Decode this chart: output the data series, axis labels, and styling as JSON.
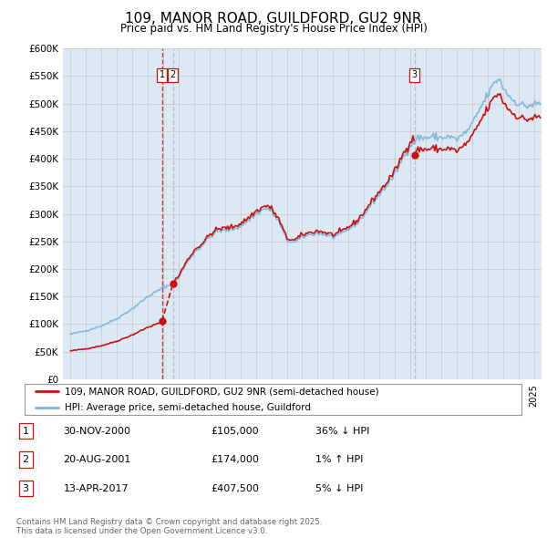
{
  "title": "109, MANOR ROAD, GUILDFORD, GU2 9NR",
  "subtitle": "Price paid vs. HM Land Registry's House Price Index (HPI)",
  "ylim": [
    0,
    600000
  ],
  "yticks": [
    0,
    50000,
    100000,
    150000,
    200000,
    250000,
    300000,
    350000,
    400000,
    450000,
    500000,
    550000,
    600000
  ],
  "xlim_start": 1994.5,
  "xlim_end": 2025.5,
  "hpi_color": "#7ab4d8",
  "price_color": "#cc1111",
  "grid_color": "#cccccc",
  "background_color": "#dce9f5",
  "sale_dates": [
    2000.916,
    2001.635,
    2017.278
  ],
  "sale_prices": [
    105000,
    174000,
    407500
  ],
  "sale_labels": [
    "1",
    "2",
    "3"
  ],
  "vline1_color": "#cc1111",
  "vline2_color": "#aaaacc",
  "vline3_color": "#aaaacc",
  "transaction_table": [
    {
      "label": "1",
      "date": "30-NOV-2000",
      "price": "£105,000",
      "hpi": "36% ↓ HPI"
    },
    {
      "label": "2",
      "date": "20-AUG-2001",
      "price": "£174,000",
      "hpi": "1% ↑ HPI"
    },
    {
      "label": "3",
      "date": "13-APR-2017",
      "price": "£407,500",
      "hpi": "5% ↓ HPI"
    }
  ],
  "legend_line1": "109, MANOR ROAD, GUILDFORD, GU2 9NR (semi-detached house)",
  "legend_line2": "HPI: Average price, semi-detached house, Guildford",
  "footer": "Contains HM Land Registry data © Crown copyright and database right 2025.\nThis data is licensed under the Open Government Licence v3.0."
}
